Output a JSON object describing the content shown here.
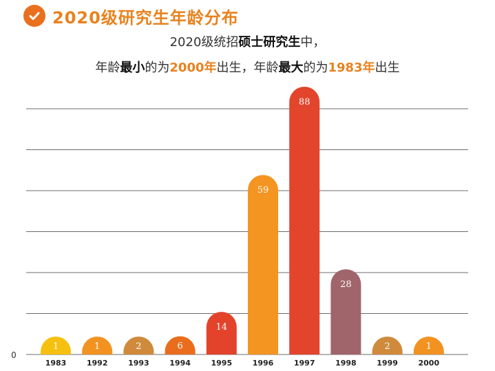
{
  "header": {
    "title": "2020级研究生年龄分布",
    "icon": "check-circle-icon",
    "accent": "#e8701f"
  },
  "subtitle": {
    "line1_a": "2020级统招",
    "line1_b": "硕士研究生",
    "line1_c": "中，",
    "line2_a": "年龄",
    "line2_b": "最小",
    "line2_c": "的为",
    "line2_d": "2000年",
    "line2_e": "出生，年龄",
    "line2_f": "最大",
    "line2_g": "的为",
    "line2_h": "1983年",
    "line2_i": "出生"
  },
  "chart_data": {
    "type": "bar",
    "title": "2020级研究生年龄分布",
    "xlabel": "",
    "ylabel": "",
    "categories": [
      "1983",
      "1992",
      "1993",
      "1994",
      "1995",
      "1996",
      "1997",
      "1998",
      "1999",
      "2000"
    ],
    "values": [
      1,
      1,
      2,
      6,
      14,
      59,
      88,
      28,
      2,
      1
    ],
    "colors": [
      "#f5c00f",
      "#f29321",
      "#cf8a3c",
      "#e96d1d",
      "#e3432b",
      "#f49421",
      "#e2452b",
      "#a0656a",
      "#cf8a3c",
      "#f29321"
    ],
    "y_tick_label": "0",
    "grid": true,
    "bar_shape": "rounded-top"
  }
}
